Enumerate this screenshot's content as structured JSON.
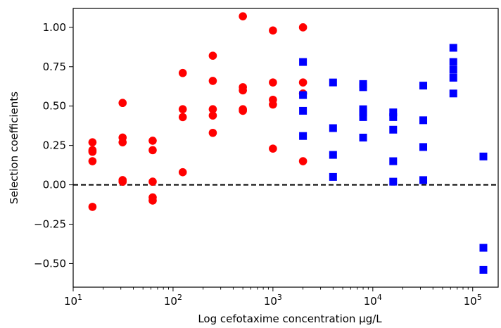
{
  "chart_data": {
    "type": "scatter",
    "xlabel": "Log cefotaxime concentration μg/L",
    "ylabel": "Selection coefficients",
    "xscale": "log",
    "xlim": [
      10,
      180000
    ],
    "ylim": [
      -0.65,
      1.12
    ],
    "x_ticks": [
      {
        "value": 10,
        "base": "10",
        "exp": "1"
      },
      {
        "value": 100,
        "base": "10",
        "exp": "2"
      },
      {
        "value": 1000,
        "base": "10",
        "exp": "3"
      },
      {
        "value": 10000,
        "base": "10",
        "exp": "4"
      },
      {
        "value": 100000,
        "base": "10",
        "exp": "5"
      }
    ],
    "y_ticks": [
      {
        "value": -0.5,
        "label": "−0.50"
      },
      {
        "value": -0.25,
        "label": "−0.25"
      },
      {
        "value": 0.0,
        "label": "0.00"
      },
      {
        "value": 0.25,
        "label": "0.25"
      },
      {
        "value": 0.5,
        "label": "0.50"
      },
      {
        "value": 0.75,
        "label": "0.75"
      },
      {
        "value": 1.0,
        "label": "1.00"
      }
    ],
    "reference_line": {
      "y": 0,
      "style": "dashed",
      "color": "#000000"
    },
    "grid": false,
    "series": [
      {
        "marker": "circle",
        "color": "#ff0000",
        "points": [
          [
            15.6,
            0.27
          ],
          [
            15.6,
            0.22
          ],
          [
            15.6,
            0.21
          ],
          [
            15.6,
            0.15
          ],
          [
            15.6,
            -0.14
          ],
          [
            31.25,
            0.52
          ],
          [
            31.25,
            0.3
          ],
          [
            31.25,
            0.27
          ],
          [
            31.25,
            0.03
          ],
          [
            31.25,
            0.02
          ],
          [
            62.5,
            0.28
          ],
          [
            62.5,
            0.22
          ],
          [
            62.5,
            0.02
          ],
          [
            62.5,
            -0.08
          ],
          [
            62.5,
            -0.1
          ],
          [
            125,
            0.71
          ],
          [
            125,
            0.48
          ],
          [
            125,
            0.43
          ],
          [
            125,
            0.08
          ],
          [
            250,
            0.82
          ],
          [
            250,
            0.66
          ],
          [
            250,
            0.48
          ],
          [
            250,
            0.44
          ],
          [
            250,
            0.33
          ],
          [
            500,
            1.07
          ],
          [
            500,
            0.62
          ],
          [
            500,
            0.6
          ],
          [
            500,
            0.48
          ],
          [
            500,
            0.47
          ],
          [
            1000,
            0.98
          ],
          [
            1000,
            0.65
          ],
          [
            1000,
            0.54
          ],
          [
            1000,
            0.51
          ],
          [
            1000,
            0.23
          ],
          [
            2000,
            1.0
          ],
          [
            2000,
            0.65
          ],
          [
            2000,
            0.58
          ],
          [
            2000,
            0.15
          ]
        ]
      },
      {
        "marker": "square",
        "color": "#0000ff",
        "points": [
          [
            2000,
            0.78
          ],
          [
            2000,
            0.57
          ],
          [
            2000,
            0.47
          ],
          [
            2000,
            0.31
          ],
          [
            4000,
            0.65
          ],
          [
            4000,
            0.36
          ],
          [
            4000,
            0.19
          ],
          [
            4000,
            0.05
          ],
          [
            8000,
            0.64
          ],
          [
            8000,
            0.62
          ],
          [
            8000,
            0.48
          ],
          [
            8000,
            0.46
          ],
          [
            8000,
            0.43
          ],
          [
            8000,
            0.3
          ],
          [
            16000,
            0.46
          ],
          [
            16000,
            0.43
          ],
          [
            16000,
            0.35
          ],
          [
            16000,
            0.15
          ],
          [
            16000,
            0.02
          ],
          [
            32000,
            0.63
          ],
          [
            32000,
            0.41
          ],
          [
            32000,
            0.24
          ],
          [
            32000,
            0.03
          ],
          [
            64000,
            0.87
          ],
          [
            64000,
            0.78
          ],
          [
            64000,
            0.73
          ],
          [
            64000,
            0.68
          ],
          [
            64000,
            0.58
          ],
          [
            128000,
            0.18
          ],
          [
            128000,
            -0.4
          ],
          [
            128000,
            -0.54
          ]
        ]
      }
    ]
  }
}
